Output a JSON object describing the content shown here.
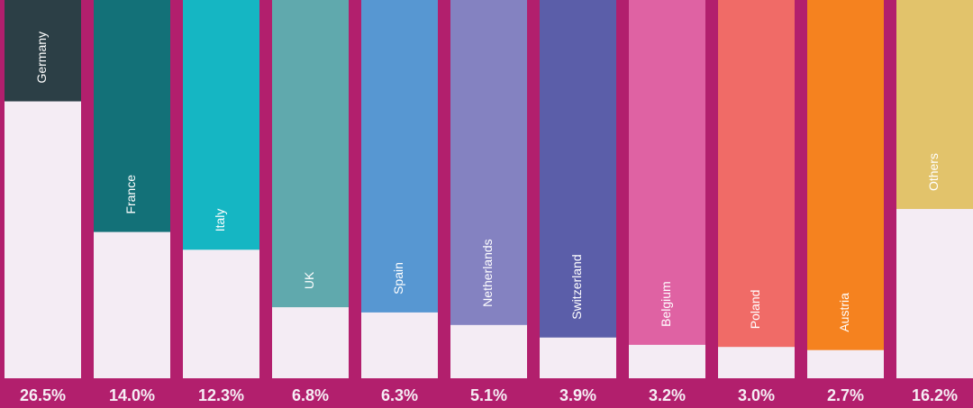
{
  "chart_data": {
    "type": "bar",
    "categories": [
      "Germany",
      "France",
      "Italy",
      "UK",
      "Spain",
      "Netherlands",
      "Switzerland",
      "Belgium",
      "Poland",
      "Austria",
      "Others"
    ],
    "values": [
      26.5,
      14.0,
      12.3,
      6.8,
      6.3,
      5.1,
      3.9,
      3.2,
      3.0,
      2.7,
      16.2
    ],
    "value_labels": [
      "26.5%",
      "14.0%",
      "12.3%",
      "6.8%",
      "6.3%",
      "5.1%",
      "3.9%",
      "3.2%",
      "3.0%",
      "2.7%",
      "16.2%"
    ],
    "colors": [
      "#2c3f46",
      "#137178",
      "#15b6c3",
      "#60a9ad",
      "#5797d2",
      "#8482c1",
      "#5b5ea9",
      "#df62a3",
      "#f06b67",
      "#f5821f",
      "#e2c36b"
    ],
    "ylim": [
      0,
      36.2
    ]
  }
}
